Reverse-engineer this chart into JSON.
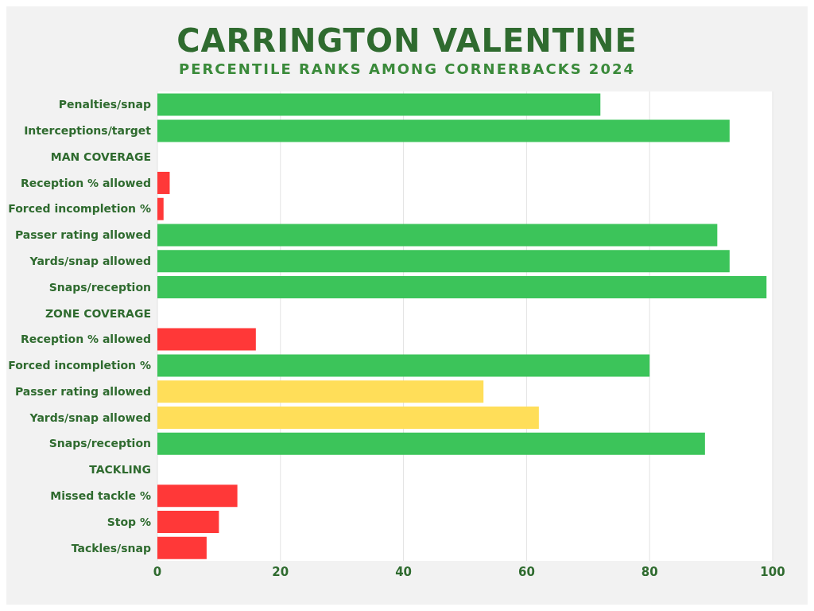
{
  "chart_data": {
    "type": "bar",
    "orientation": "horizontal",
    "title": "CARRINGTON VALENTINE",
    "subtitle": "PERCENTILE RANKS AMONG CORNERBACKS 2024",
    "categories": [
      "Penalties/snap",
      "Interceptions/target",
      "MAN COVERAGE",
      "Reception % allowed",
      "Forced incompletion %",
      "Passer rating allowed",
      "Yards/snap allowed",
      "Snaps/reception",
      "ZONE COVERAGE",
      "Reception % allowed",
      "Forced incompletion %",
      "Passer rating allowed",
      "Yards/snap allowed",
      "Snaps/reception",
      "TACKLING",
      "Missed tackle %",
      "Stop %",
      "Tackles/snap"
    ],
    "values": [
      72,
      93,
      null,
      2,
      1,
      91,
      93,
      99,
      null,
      16,
      80,
      53,
      62,
      89,
      null,
      13,
      10,
      8
    ],
    "colors": [
      "#3cc45a",
      "#3cc45a",
      null,
      "#ff3838",
      "#ff3838",
      "#3cc45a",
      "#3cc45a",
      "#3cc45a",
      null,
      "#ff3838",
      "#3cc45a",
      "#ffde59",
      "#ffde59",
      "#3cc45a",
      null,
      "#ff3838",
      "#ff3838",
      "#ff3838"
    ],
    "xlim": [
      0,
      100
    ],
    "xticks": [
      0,
      20,
      40,
      60,
      80,
      100
    ],
    "grid": "x",
    "legend": false
  }
}
